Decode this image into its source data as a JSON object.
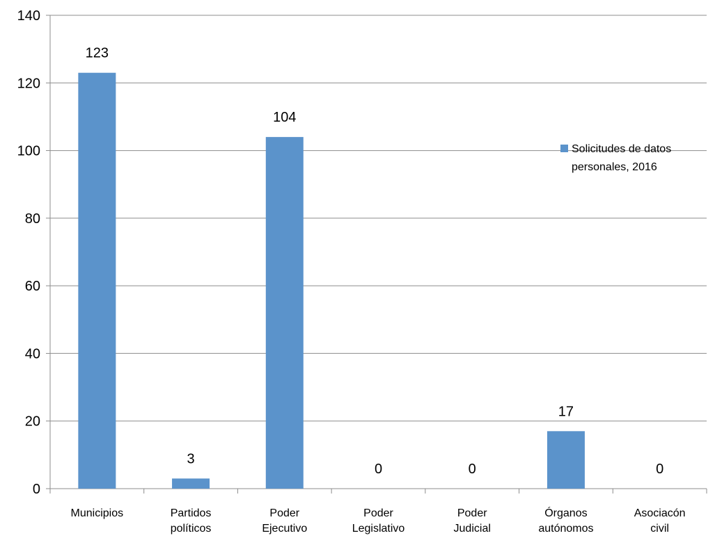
{
  "chart_data": {
    "type": "bar",
    "categories": [
      [
        "Municipios"
      ],
      [
        "Partidos",
        "políticos"
      ],
      [
        "Poder",
        "Ejecutivo"
      ],
      [
        "Poder",
        "Legislativo"
      ],
      [
        "Poder",
        "Judicial"
      ],
      [
        "Órganos",
        "autónomos"
      ],
      [
        "Asociacón",
        "civil"
      ]
    ],
    "series": [
      {
        "name": [
          "Solicitudes de datos",
          "personales, 2016"
        ],
        "color": "#5B93CB",
        "values": [
          123,
          3,
          104,
          0,
          0,
          17,
          0
        ]
      }
    ],
    "ylim": [
      0,
      140
    ],
    "yticks": [
      "0",
      "20",
      "40",
      "60",
      "80",
      "100",
      "120",
      "140"
    ],
    "grid": true,
    "legend": "right"
  }
}
